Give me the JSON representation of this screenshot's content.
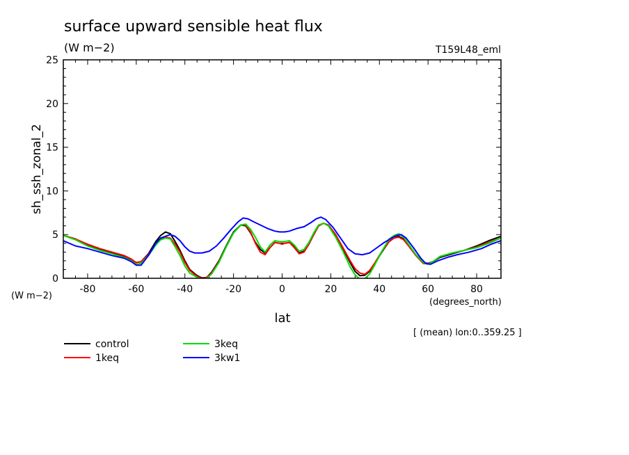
{
  "chart_data": {
    "type": "line",
    "title": "surface upward sensible heat flux",
    "units": "(W m−2)",
    "run_label": "T159L48_eml",
    "ylabel": "sh_ssh_zonal_2",
    "y_units": "(W m−2)",
    "xlabel": "lat",
    "x_units": "(degrees_north)",
    "note": "[ (mean) lon:0..359.25 ]",
    "xlim": [
      -90,
      90
    ],
    "ylim": [
      0,
      25
    ],
    "x_ticks": [
      -80,
      -60,
      -40,
      -20,
      0,
      20,
      40,
      60,
      80
    ],
    "y_ticks": [
      0,
      5,
      10,
      15,
      20,
      25
    ],
    "legend_position": "bottom-left",
    "series": [
      {
        "name": "control",
        "color": "#000000",
        "points": [
          [
            -90,
            4.9
          ],
          [
            -85,
            4.5
          ],
          [
            -80,
            3.8
          ],
          [
            -75,
            3.3
          ],
          [
            -70,
            2.9
          ],
          [
            -65,
            2.5
          ],
          [
            -62,
            2.1
          ],
          [
            -60,
            1.8
          ],
          [
            -58,
            1.9
          ],
          [
            -55,
            2.8
          ],
          [
            -52,
            4.2
          ],
          [
            -50,
            4.9
          ],
          [
            -48,
            5.3
          ],
          [
            -46,
            5.1
          ],
          [
            -44,
            4.2
          ],
          [
            -42,
            3.2
          ],
          [
            -40,
            2.0
          ],
          [
            -38,
            1.0
          ],
          [
            -35,
            0.3
          ],
          [
            -33,
            0.05
          ],
          [
            -31,
            0.1
          ],
          [
            -29,
            0.7
          ],
          [
            -26,
            2.0
          ],
          [
            -23,
            3.7
          ],
          [
            -20,
            5.3
          ],
          [
            -17,
            6.1
          ],
          [
            -15,
            6.0
          ],
          [
            -13,
            5.2
          ],
          [
            -11,
            4.1
          ],
          [
            -9,
            3.3
          ],
          [
            -7,
            2.9
          ],
          [
            -5,
            3.5
          ],
          [
            -3,
            4.1
          ],
          [
            -1,
            4.0
          ],
          [
            0,
            4.0
          ],
          [
            1,
            4.0
          ],
          [
            3,
            4.1
          ],
          [
            5,
            3.6
          ],
          [
            7,
            2.9
          ],
          [
            9,
            3.1
          ],
          [
            11,
            3.9
          ],
          [
            13,
            5.0
          ],
          [
            15,
            6.0
          ],
          [
            17,
            6.3
          ],
          [
            19,
            6.1
          ],
          [
            22,
            5.0
          ],
          [
            25,
            3.4
          ],
          [
            28,
            1.8
          ],
          [
            30,
            0.8
          ],
          [
            32,
            0.3
          ],
          [
            34,
            0.35
          ],
          [
            36,
            0.8
          ],
          [
            38,
            1.6
          ],
          [
            41,
            3.0
          ],
          [
            44,
            4.2
          ],
          [
            46,
            4.6
          ],
          [
            48,
            4.8
          ],
          [
            50,
            4.5
          ],
          [
            52,
            3.8
          ],
          [
            55,
            2.7
          ],
          [
            58,
            1.8
          ],
          [
            60,
            1.7
          ],
          [
            62,
            1.9
          ],
          [
            65,
            2.4
          ],
          [
            70,
            2.8
          ],
          [
            75,
            3.2
          ],
          [
            80,
            3.7
          ],
          [
            85,
            4.3
          ],
          [
            90,
            4.8
          ]
        ]
      },
      {
        "name": "1keq",
        "color": "#ff0000",
        "points": [
          [
            -90,
            4.9
          ],
          [
            -85,
            4.5
          ],
          [
            -80,
            3.9
          ],
          [
            -75,
            3.4
          ],
          [
            -70,
            3.0
          ],
          [
            -65,
            2.6
          ],
          [
            -62,
            2.2
          ],
          [
            -60,
            1.8
          ],
          [
            -58,
            1.9
          ],
          [
            -55,
            2.7
          ],
          [
            -52,
            3.9
          ],
          [
            -50,
            4.5
          ],
          [
            -48,
            4.7
          ],
          [
            -46,
            4.6
          ],
          [
            -44,
            3.9
          ],
          [
            -42,
            3.0
          ],
          [
            -40,
            1.8
          ],
          [
            -38,
            0.9
          ],
          [
            -35,
            0.2
          ],
          [
            -33,
            0.0
          ],
          [
            -31,
            0.1
          ],
          [
            -29,
            0.6
          ],
          [
            -26,
            1.9
          ],
          [
            -23,
            3.6
          ],
          [
            -20,
            5.2
          ],
          [
            -17,
            6.1
          ],
          [
            -15,
            6.1
          ],
          [
            -13,
            5.3
          ],
          [
            -11,
            4.0
          ],
          [
            -9,
            3.0
          ],
          [
            -7,
            2.7
          ],
          [
            -5,
            3.5
          ],
          [
            -3,
            4.1
          ],
          [
            -1,
            4.0
          ],
          [
            0,
            3.9
          ],
          [
            1,
            4.0
          ],
          [
            3,
            4.1
          ],
          [
            5,
            3.5
          ],
          [
            7,
            2.8
          ],
          [
            9,
            3.0
          ],
          [
            11,
            3.9
          ],
          [
            13,
            5.0
          ],
          [
            15,
            6.0
          ],
          [
            17,
            6.3
          ],
          [
            19,
            6.1
          ],
          [
            22,
            5.0
          ],
          [
            25,
            3.5
          ],
          [
            28,
            2.0
          ],
          [
            30,
            1.1
          ],
          [
            32,
            0.6
          ],
          [
            34,
            0.45
          ],
          [
            36,
            0.9
          ],
          [
            38,
            1.7
          ],
          [
            41,
            3.1
          ],
          [
            44,
            4.2
          ],
          [
            46,
            4.6
          ],
          [
            48,
            4.7
          ],
          [
            50,
            4.4
          ],
          [
            52,
            3.7
          ],
          [
            55,
            2.6
          ],
          [
            58,
            1.7
          ],
          [
            60,
            1.65
          ],
          [
            62,
            1.9
          ],
          [
            65,
            2.5
          ],
          [
            70,
            2.9
          ],
          [
            75,
            3.2
          ],
          [
            80,
            3.6
          ],
          [
            85,
            4.1
          ],
          [
            90,
            4.6
          ]
        ]
      },
      {
        "name": "3keq",
        "color": "#00dd00",
        "points": [
          [
            -90,
            4.9
          ],
          [
            -85,
            4.4
          ],
          [
            -80,
            3.7
          ],
          [
            -75,
            3.2
          ],
          [
            -70,
            2.8
          ],
          [
            -65,
            2.4
          ],
          [
            -62,
            2.0
          ],
          [
            -60,
            1.6
          ],
          [
            -58,
            1.7
          ],
          [
            -55,
            2.6
          ],
          [
            -52,
            3.8
          ],
          [
            -50,
            4.4
          ],
          [
            -48,
            4.6
          ],
          [
            -46,
            4.5
          ],
          [
            -44,
            3.6
          ],
          [
            -42,
            2.6
          ],
          [
            -40,
            1.4
          ],
          [
            -38,
            0.6
          ],
          [
            -35,
            0.1
          ],
          [
            -33,
            -0.1
          ],
          [
            -31,
            0.0
          ],
          [
            -29,
            0.5
          ],
          [
            -26,
            1.8
          ],
          [
            -23,
            3.6
          ],
          [
            -20,
            5.2
          ],
          [
            -17,
            6.1
          ],
          [
            -15,
            6.2
          ],
          [
            -13,
            5.6
          ],
          [
            -11,
            4.7
          ],
          [
            -9,
            3.6
          ],
          [
            -7,
            3.0
          ],
          [
            -5,
            3.8
          ],
          [
            -3,
            4.3
          ],
          [
            -1,
            4.2
          ],
          [
            0,
            4.2
          ],
          [
            1,
            4.2
          ],
          [
            3,
            4.3
          ],
          [
            5,
            3.8
          ],
          [
            7,
            3.1
          ],
          [
            9,
            3.3
          ],
          [
            11,
            4.1
          ],
          [
            13,
            5.2
          ],
          [
            15,
            6.1
          ],
          [
            17,
            6.3
          ],
          [
            19,
            6.0
          ],
          [
            22,
            4.7
          ],
          [
            25,
            3.1
          ],
          [
            28,
            1.3
          ],
          [
            30,
            0.4
          ],
          [
            32,
            -0.1
          ],
          [
            34,
            -0.05
          ],
          [
            36,
            0.5
          ],
          [
            38,
            1.5
          ],
          [
            41,
            3.1
          ],
          [
            44,
            4.5
          ],
          [
            46,
            4.9
          ],
          [
            48,
            5.1
          ],
          [
            50,
            4.7
          ],
          [
            52,
            3.9
          ],
          [
            55,
            2.7
          ],
          [
            58,
            1.8
          ],
          [
            60,
            1.6
          ],
          [
            62,
            1.9
          ],
          [
            65,
            2.5
          ],
          [
            70,
            2.9
          ],
          [
            75,
            3.2
          ],
          [
            80,
            3.5
          ],
          [
            85,
            4.0
          ],
          [
            90,
            4.6
          ]
        ]
      },
      {
        "name": "3kw1",
        "color": "#0000ff",
        "points": [
          [
            -90,
            4.3
          ],
          [
            -85,
            3.7
          ],
          [
            -80,
            3.4
          ],
          [
            -75,
            3.0
          ],
          [
            -70,
            2.6
          ],
          [
            -65,
            2.3
          ],
          [
            -62,
            1.9
          ],
          [
            -60,
            1.5
          ],
          [
            -58,
            1.5
          ],
          [
            -55,
            2.6
          ],
          [
            -52,
            4.0
          ],
          [
            -50,
            4.6
          ],
          [
            -48,
            4.8
          ],
          [
            -46,
            5.0
          ],
          [
            -44,
            4.8
          ],
          [
            -42,
            4.3
          ],
          [
            -40,
            3.6
          ],
          [
            -38,
            3.1
          ],
          [
            -36,
            2.9
          ],
          [
            -33,
            2.9
          ],
          [
            -30,
            3.1
          ],
          [
            -27,
            3.7
          ],
          [
            -24,
            4.6
          ],
          [
            -21,
            5.6
          ],
          [
            -18,
            6.5
          ],
          [
            -16,
            6.9
          ],
          [
            -14,
            6.8
          ],
          [
            -12,
            6.5
          ],
          [
            -9,
            6.1
          ],
          [
            -6,
            5.7
          ],
          [
            -3,
            5.4
          ],
          [
            -1,
            5.3
          ],
          [
            0,
            5.3
          ],
          [
            1,
            5.3
          ],
          [
            3,
            5.4
          ],
          [
            6,
            5.7
          ],
          [
            9,
            5.9
          ],
          [
            12,
            6.4
          ],
          [
            14,
            6.8
          ],
          [
            16,
            7.0
          ],
          [
            18,
            6.7
          ],
          [
            21,
            5.8
          ],
          [
            24,
            4.6
          ],
          [
            27,
            3.4
          ],
          [
            30,
            2.8
          ],
          [
            33,
            2.7
          ],
          [
            36,
            2.9
          ],
          [
            39,
            3.5
          ],
          [
            42,
            4.1
          ],
          [
            45,
            4.6
          ],
          [
            47,
            4.9
          ],
          [
            49,
            5.0
          ],
          [
            51,
            4.6
          ],
          [
            54,
            3.5
          ],
          [
            57,
            2.3
          ],
          [
            59,
            1.7
          ],
          [
            61,
            1.6
          ],
          [
            64,
            2.0
          ],
          [
            68,
            2.4
          ],
          [
            72,
            2.7
          ],
          [
            77,
            3.0
          ],
          [
            82,
            3.4
          ],
          [
            86,
            3.9
          ],
          [
            90,
            4.3
          ]
        ]
      }
    ]
  }
}
